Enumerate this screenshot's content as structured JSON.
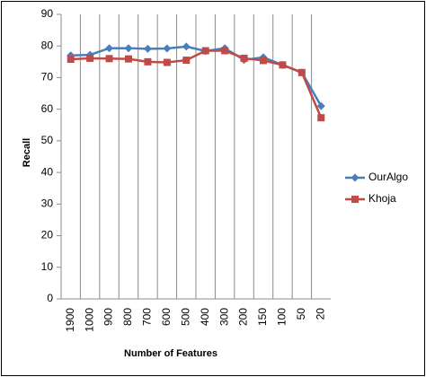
{
  "chart_data": {
    "type": "line",
    "x_label": "Number of Features",
    "y_label": "Recall",
    "categories": [
      "1900",
      "1000",
      "900",
      "800",
      "700",
      "600",
      "500",
      "400",
      "300",
      "200",
      "150",
      "100",
      "50",
      "20"
    ],
    "series": [
      {
        "name": "OurAlgo",
        "color": "#4a7ebb",
        "marker": "diamond",
        "values": [
          77,
          77.2,
          79.3,
          79.3,
          79.1,
          79.2,
          79.8,
          78.4,
          79.3,
          75.6,
          76.4,
          74,
          71.6,
          61
        ]
      },
      {
        "name": "Khoja",
        "color": "#be4b48",
        "marker": "square",
        "values": [
          75.8,
          76.1,
          76,
          75.9,
          75,
          74.8,
          75.5,
          78.5,
          78.5,
          76.1,
          75.4,
          74,
          71.6,
          57.3
        ]
      }
    ],
    "ylim": [
      0,
      90
    ],
    "yticks": [
      0,
      10,
      20,
      30,
      40,
      50,
      60,
      70,
      80,
      90
    ],
    "grid": true,
    "legend": "right"
  }
}
